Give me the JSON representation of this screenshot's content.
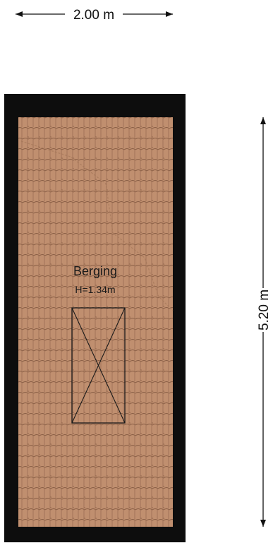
{
  "dimensions": {
    "width_label": "2.00 m",
    "height_label": "5.20 m"
  },
  "room": {
    "name": "Berging",
    "height": "H=1.34m"
  },
  "colors": {
    "wall": "#0d0d0d",
    "tile_fill": "#c08f6f",
    "tile_line": "#8a5f46",
    "dimension_line": "#111111"
  }
}
